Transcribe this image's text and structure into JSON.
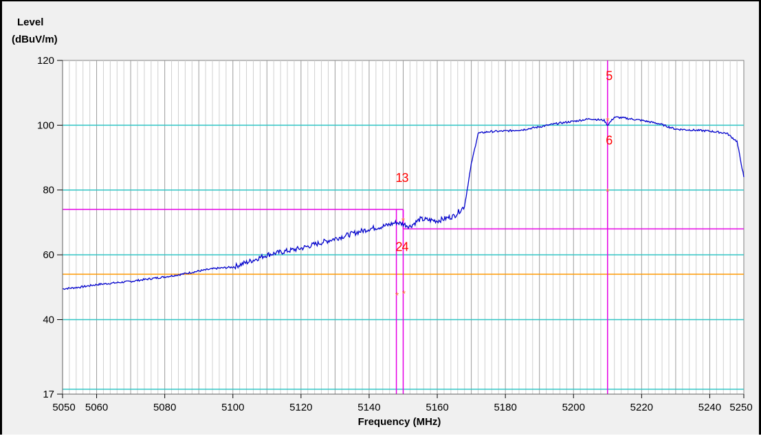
{
  "chart_data": {
    "type": "line",
    "ylabel_line1": "Level",
    "ylabel_line2": "(dBuV/m)",
    "xlabel": "Frequency (MHz)",
    "xlim": [
      5050,
      5250
    ],
    "ylim": [
      17,
      120
    ],
    "y_ticks": [
      17,
      40,
      60,
      80,
      100,
      120
    ],
    "x_ticks": [
      5050,
      5060,
      5080,
      5100,
      5120,
      5140,
      5160,
      5180,
      5200,
      5220,
      5240,
      5250
    ],
    "grid": true,
    "colors": {
      "trace": "#0000cc",
      "grid_major_h": "#2ec4c4",
      "grid_v": "#b0b0b0",
      "limit": "#e600e6",
      "reference": "#ff9900",
      "marker_text": "#ff0000",
      "marker_star": "#ff7a3a"
    },
    "series": [
      {
        "x": [
          5050,
          5055,
          5060,
          5065,
          5070,
          5075,
          5080,
          5085,
          5090,
          5095,
          5100,
          5105,
          5110,
          5115,
          5120,
          5125,
          5130,
          5135,
          5140,
          5145,
          5148,
          5150,
          5152,
          5155,
          5160,
          5165,
          5168,
          5170,
          5172,
          5175,
          5180,
          5185,
          5190,
          5195,
          5200,
          5205,
          5209,
          5210,
          5212,
          5215,
          5220,
          5225,
          5230,
          5235,
          5240,
          5245,
          5248,
          5250
        ],
        "y": [
          49.5,
          50.0,
          50.8,
          51.3,
          51.8,
          52.5,
          53.2,
          54.0,
          55.0,
          55.8,
          56.2,
          58.0,
          60.0,
          61.0,
          62.0,
          63.5,
          65.0,
          66.5,
          68.0,
          69.0,
          70.0,
          69.5,
          68.8,
          71.0,
          70.5,
          72.0,
          75.0,
          88.0,
          97.5,
          98.0,
          98.2,
          98.6,
          99.5,
          100.5,
          101.2,
          102.0,
          101.5,
          100.0,
          102.5,
          102.2,
          101.5,
          100.5,
          98.8,
          98.5,
          98.2,
          97.5,
          95.0,
          84.0
        ]
      }
    ],
    "limit_lines": [
      {
        "x": [
          5050,
          5150
        ],
        "y": 74
      },
      {
        "x": [
          5150,
          5250
        ],
        "y": 68
      }
    ],
    "vertical_lines": [
      {
        "x": 5148,
        "y": [
          17,
          74
        ]
      },
      {
        "x": 5150,
        "y": [
          17,
          74
        ]
      },
      {
        "x": 5210,
        "y": [
          17,
          120
        ]
      }
    ],
    "reference_line": {
      "y": 54
    },
    "h_cyan_lines": [
      18.5,
      40,
      60,
      80,
      100
    ],
    "markers": [
      {
        "label": "1",
        "x": 5148.8,
        "y": 82.5
      },
      {
        "label": "3",
        "x": 5150.6,
        "y": 82.5
      },
      {
        "label": "2",
        "x": 5148.8,
        "y": 61.2
      },
      {
        "label": "4",
        "x": 5150.6,
        "y": 61.2
      },
      {
        "label": "5",
        "x": 5210.5,
        "y": 114
      },
      {
        "label": "6",
        "x": 5210.5,
        "y": 94
      }
    ],
    "star_points": [
      {
        "x": 5148.2,
        "y": 47.5
      },
      {
        "x": 5150.2,
        "y": 48.0
      },
      {
        "x": 5150.0,
        "y": 70.5
      },
      {
        "x": 5210.0,
        "y": 101.5
      },
      {
        "x": 5210.0,
        "y": 79.5
      }
    ]
  }
}
